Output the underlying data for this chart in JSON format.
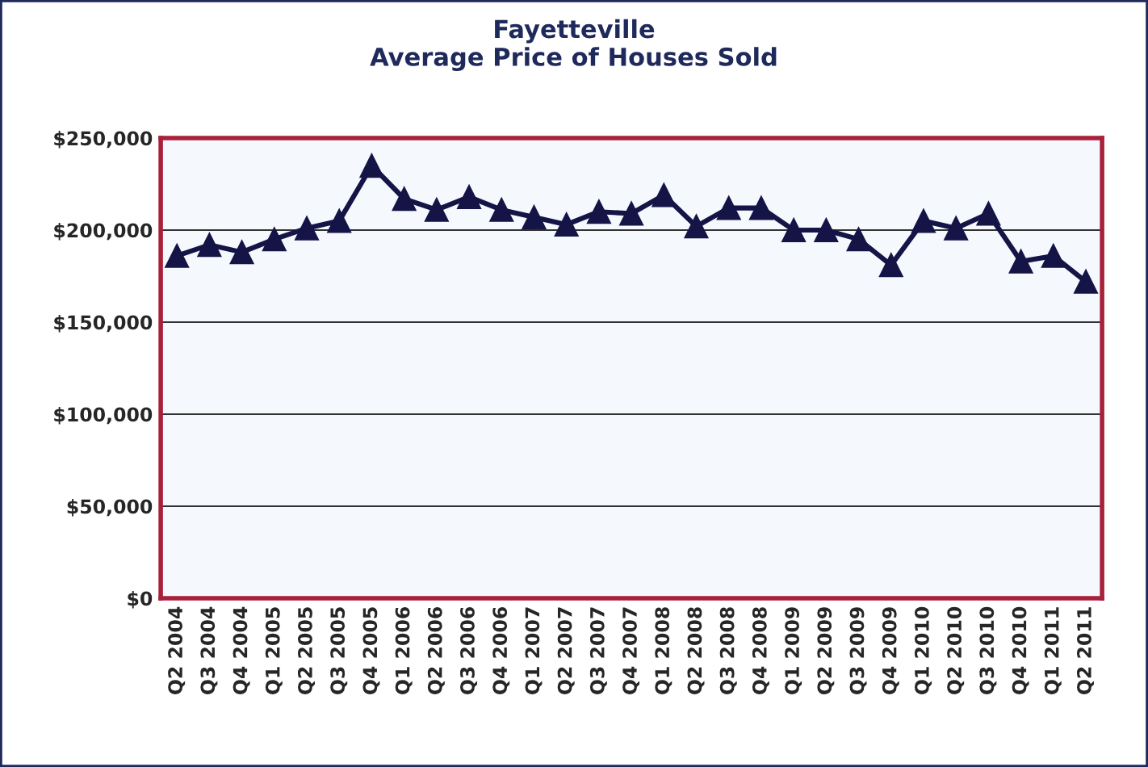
{
  "chart_data": {
    "type": "line",
    "title": "Fayetteville\nAverage Price of Houses Sold",
    "categories": [
      "Q2 2004",
      "Q3 2004",
      "Q4 2004",
      "Q1 2005",
      "Q2 2005",
      "Q3 2005",
      "Q4 2005",
      "Q1 2006",
      "Q2 2006",
      "Q3 2006",
      "Q4 2006",
      "Q1 2007",
      "Q2 2007",
      "Q3 2007",
      "Q4 2007",
      "Q1 2008",
      "Q2 2008",
      "Q3 2008",
      "Q4 2008",
      "Q1 2009",
      "Q2 2009",
      "Q3 2009",
      "Q4 2009",
      "Q1 2010",
      "Q2 2010",
      "Q3 2010",
      "Q4 2010",
      "Q1 2011",
      "Q2 2011"
    ],
    "series": [
      {
        "color": "#141447",
        "values": [
          186000,
          192000,
          188000,
          195000,
          201000,
          205000,
          235000,
          217000,
          211000,
          218000,
          211000,
          207000,
          203000,
          210000,
          209000,
          219000,
          202000,
          212000,
          212000,
          200000,
          200000,
          195000,
          181000,
          205000,
          201000,
          209000,
          183000,
          186000,
          172000
        ]
      }
    ],
    "ylim": [
      0,
      250000
    ],
    "yticks": [
      {
        "value": 0,
        "label": "$0"
      },
      {
        "value": 50000,
        "label": "$50,000"
      },
      {
        "value": 100000,
        "label": "$100,000"
      },
      {
        "value": 150000,
        "label": "$150,000"
      },
      {
        "value": 200000,
        "label": "$200,000"
      },
      {
        "value": 250000,
        "label": "$250,000"
      }
    ],
    "grid": "y",
    "marker": "triangle",
    "line_style": "solid",
    "legend": false
  }
}
